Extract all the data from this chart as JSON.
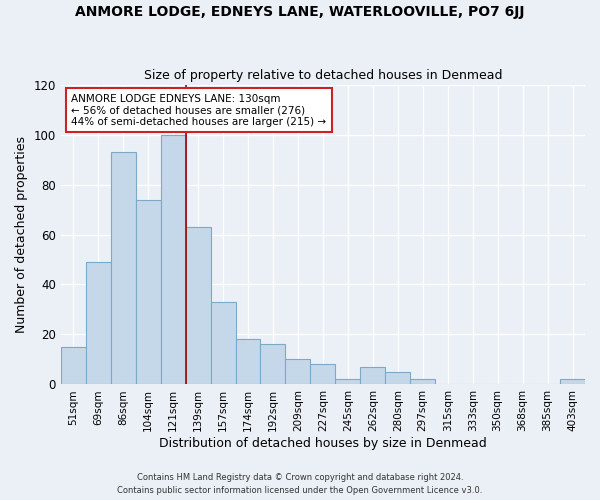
{
  "title": "ANMORE LODGE, EDNEYS LANE, WATERLOOVILLE, PO7 6JJ",
  "subtitle": "Size of property relative to detached houses in Denmead",
  "xlabel": "Distribution of detached houses by size in Denmead",
  "ylabel": "Number of detached properties",
  "bar_color": "#c5d8ea",
  "bar_edge_color": "#7aaac8",
  "background_color": "#eaf0f6",
  "plot_bg_color": "#eaf0f6",
  "grid_color": "#ffffff",
  "categories": [
    "51sqm",
    "69sqm",
    "86sqm",
    "104sqm",
    "121sqm",
    "139sqm",
    "157sqm",
    "174sqm",
    "192sqm",
    "209sqm",
    "227sqm",
    "245sqm",
    "262sqm",
    "280sqm",
    "297sqm",
    "315sqm",
    "333sqm",
    "350sqm",
    "368sqm",
    "385sqm",
    "403sqm"
  ],
  "values": [
    15,
    49,
    93,
    74,
    100,
    63,
    33,
    18,
    16,
    10,
    8,
    2,
    7,
    5,
    2,
    0,
    0,
    0,
    0,
    0,
    2
  ],
  "property_line_x": 4.5,
  "property_line_color": "#aa0000",
  "annotation_line1": "ANMORE LODGE EDNEYS LANE: 130sqm",
  "annotation_line2": "← 56% of detached houses are smaller (276)",
  "annotation_line3": "44% of semi-detached houses are larger (215) →",
  "annotation_box_color": "#ffffff",
  "annotation_box_edge_color": "#cc2222",
  "ylim": [
    0,
    120
  ],
  "yticks": [
    0,
    20,
    40,
    60,
    80,
    100,
    120
  ],
  "footer_line1": "Contains HM Land Registry data © Crown copyright and database right 2024.",
  "footer_line2": "Contains public sector information licensed under the Open Government Licence v3.0."
}
